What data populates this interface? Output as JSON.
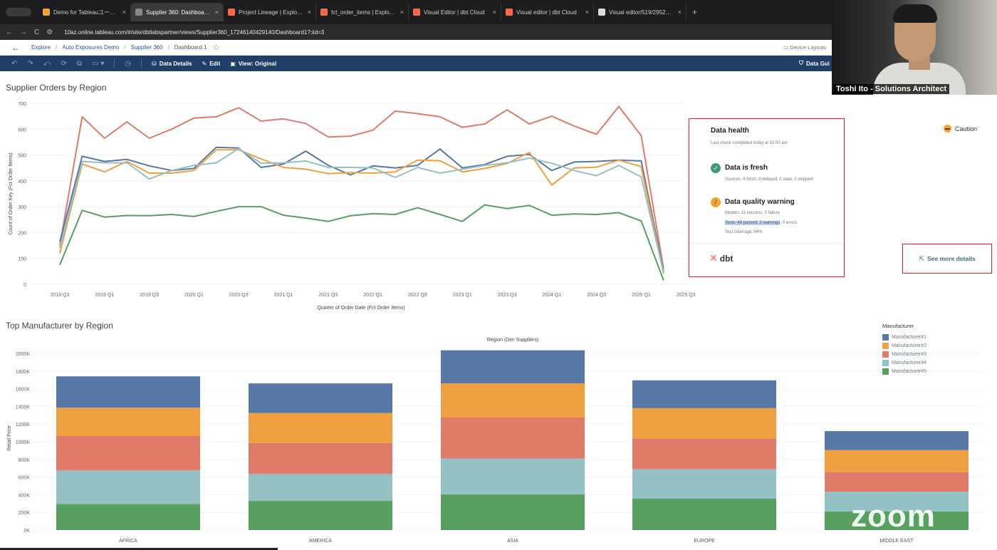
{
  "browser": {
    "tabs": [
      {
        "title": "Demo for Tableauユーザーの",
        "color": "#f2a531",
        "active": false
      },
      {
        "title": "Supplier 360: Dashboard 1 -",
        "color": "#888888",
        "active": true
      },
      {
        "title": "Project Lineage | Explorer | dbt",
        "color": "#ff694a",
        "active": false
      },
      {
        "title": "fct_order_items | Explorer | dbt",
        "color": "#ff694a",
        "active": false
      },
      {
        "title": "Visual Editor | dbt Cloud",
        "color": "#ff694a",
        "active": false
      },
      {
        "title": "Visual editor | dbt Cloud",
        "color": "#ff694a",
        "active": false
      },
      {
        "title": "Visual editor/519/295214 by",
        "color": "#dddddd",
        "active": false
      }
    ],
    "tab_close": "×",
    "new_tab": "+",
    "url": "10az.online.tableau.com/#/site/dbtlabspartner/views/Supplier360_17246140429140/Dashboard1?:iid=3"
  },
  "breadcrumb": {
    "items": [
      "Explore",
      "Auto Exposures Demo",
      "Supplier 360"
    ],
    "current": "Dashboard 1",
    "device_layouts": "Device Layouts"
  },
  "toolbar": {
    "data_details": "Data Details",
    "edit": "Edit",
    "view": "View: Original",
    "data_guide": "Data Gui"
  },
  "line_chart_title": "Supplier Orders by Region",
  "bar_chart_title": "Top Manufacturer by Region",
  "data_health": {
    "title": "Data health",
    "last_check": "Last check completed today at 10:00 am",
    "fresh_title": "Data is fresh",
    "fresh_sub": "Sources: 6 fresh, 0 delayed, 0 stale, 0 skipped",
    "quality_title": "Data quality warning",
    "quality_models": "Models: 11 success, 0 failure",
    "quality_tests_hl": "Tests: 49 passed, 2 warnings",
    "quality_tests_rest": ", 0 errors",
    "quality_coverage": "Test coverage: 94%",
    "logo": "dbt",
    "caution": "Caution",
    "see_more": "See more details"
  },
  "video": {
    "name": "Toshi Ito - Solutions Architect",
    "watermark": "zoom"
  },
  "chart_data": [
    {
      "type": "line",
      "title": "Supplier Orders by Region",
      "xlabel": "Quarter of Order Date (Fct Order Items)",
      "ylabel": "Count of Order Key (Fct Order Items)",
      "ylim": [
        0,
        700
      ],
      "yticks": [
        0,
        100,
        200,
        300,
        400,
        500,
        600,
        700
      ],
      "xtick_labels": [
        "2018 Q3",
        "2019 Q1",
        "2019 Q3",
        "2020 Q1",
        "2020 Q3",
        "2021 Q1",
        "2021 Q3",
        "2022 Q1",
        "2022 Q3",
        "2023 Q1",
        "2023 Q3",
        "2024 Q1",
        "2024 Q3",
        "2025 Q1",
        "2025 Q3"
      ],
      "x": [
        "2018 Q3",
        "2018 Q4",
        "2019 Q1",
        "2019 Q2",
        "2019 Q3",
        "2019 Q4",
        "2020 Q1",
        "2020 Q2",
        "2020 Q3",
        "2020 Q4",
        "2021 Q1",
        "2021 Q2",
        "2021 Q3",
        "2021 Q4",
        "2022 Q1",
        "2022 Q2",
        "2022 Q3",
        "2022 Q4",
        "2023 Q1",
        "2023 Q2",
        "2023 Q3",
        "2023 Q4",
        "2024 Q1",
        "2024 Q2",
        "2024 Q3",
        "2024 Q4",
        "2025 Q1",
        "2025 Q2"
      ],
      "series": [
        {
          "color": "#e07b6a",
          "values": [
            150,
            648,
            565,
            628,
            565,
            600,
            643,
            648,
            683,
            631,
            640,
            622,
            570,
            573,
            596,
            670,
            660,
            648,
            607,
            620,
            675,
            620,
            650,
            612,
            580,
            688,
            575,
            60
          ]
        },
        {
          "color": "#5878a8",
          "values": [
            165,
            495,
            475,
            483,
            458,
            440,
            448,
            530,
            527,
            452,
            465,
            515,
            460,
            423,
            458,
            450,
            460,
            523,
            450,
            463,
            495,
            502,
            440,
            473,
            475,
            480,
            477,
            50
          ]
        },
        {
          "color": "#f0a040",
          "values": [
            120,
            465,
            435,
            475,
            430,
            430,
            440,
            520,
            520,
            485,
            452,
            445,
            428,
            432,
            430,
            435,
            480,
            478,
            435,
            448,
            467,
            510,
            384,
            450,
            453,
            480,
            455,
            40
          ]
        },
        {
          "color": "#93c1c4",
          "values": [
            140,
            475,
            470,
            470,
            407,
            440,
            460,
            470,
            525,
            468,
            470,
            477,
            452,
            452,
            450,
            413,
            452,
            430,
            445,
            460,
            470,
            488,
            468,
            440,
            420,
            460,
            415,
            45
          ]
        },
        {
          "color": "#58a060",
          "values": [
            75,
            286,
            260,
            266,
            265,
            270,
            262,
            282,
            300,
            300,
            267,
            256,
            243,
            265,
            273,
            270,
            296,
            270,
            243,
            307,
            293,
            305,
            267,
            272,
            270,
            277,
            245,
            15
          ]
        }
      ]
    },
    {
      "type": "bar",
      "title": "Top Manufacturer by Region",
      "header": "Region (Dim Suppliers)",
      "ylabel": "Retail Price",
      "ylim": [
        0,
        2000000
      ],
      "ytick_labels": [
        "0K",
        "200K",
        "400K",
        "600K",
        "800K",
        "1000K",
        "1200K",
        "1400K",
        "1600K",
        "1800K",
        "2000K"
      ],
      "categories": [
        "AFRICA",
        "AMERICA",
        "ASIA",
        "EUROPE",
        "MIDDLE EAST"
      ],
      "legend_title": "Manufacturer",
      "series": [
        {
          "name": "Manufacturer#1",
          "color": "#5878a8",
          "values": [
            355000,
            335000,
            375000,
            315000,
            215000
          ]
        },
        {
          "name": "Manufacturer#2",
          "color": "#f0a040",
          "values": [
            320000,
            340000,
            385000,
            345000,
            250000
          ]
        },
        {
          "name": "Manufacturer#3",
          "color": "#e07b6a",
          "values": [
            390000,
            350000,
            465000,
            345000,
            220000
          ]
        },
        {
          "name": "Manufacturer#4",
          "color": "#93c1c4",
          "values": [
            380000,
            305000,
            405000,
            335000,
            225000
          ]
        },
        {
          "name": "Manufacturer#5",
          "color": "#58a060",
          "values": [
            295000,
            330000,
            405000,
            355000,
            210000
          ]
        }
      ]
    }
  ]
}
